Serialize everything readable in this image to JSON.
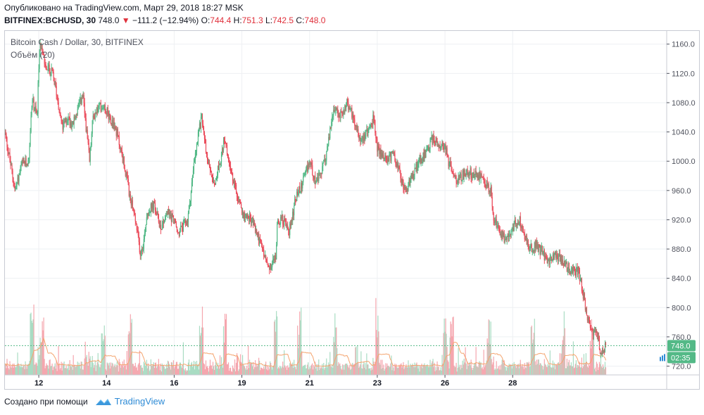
{
  "header": {
    "published_line": "Опубликовано на TradingView.com, Март 29, 2018 18:27 MSK",
    "symbol": "BITFINEX:BCHUSD, 30",
    "last": "748.0",
    "change": "−111.2 (−12.94%)",
    "o_label": "O:",
    "o_value": "744.4",
    "h_label": "H:",
    "h_value": "751.3",
    "l_label": "L:",
    "l_value": "742.5",
    "c_label": "C:",
    "c_value": "748.0"
  },
  "chart": {
    "series_title": "Bitcoin Cash / Dollar, 30, BITFINEX",
    "volume_title": "Объём (20)",
    "price_badge": "748.0",
    "countdown_badge": "02:35"
  },
  "footer": {
    "created_with": "Создано при помощи",
    "brand": "TradingView"
  },
  "colors": {
    "up": "#53b987",
    "down": "#eb4d5c",
    "volume_up": "#a9dcc3",
    "volume_down": "#f5a6ae",
    "volume_ma": "#f4a46e",
    "grid": "#eef0f3",
    "badge": "#53b987"
  },
  "chart_data": {
    "type": "candlestick",
    "x_tick_labels": [
      "12",
      "14",
      "16",
      "19",
      "21",
      "23",
      "26",
      "28"
    ],
    "x_tick_day_index": [
      1.0,
      3.0,
      5.0,
      7.0,
      9.0,
      11.0,
      13.0,
      15.0
    ],
    "y_ticks": [
      720,
      760,
      800,
      840,
      880,
      920,
      960,
      1000,
      1040,
      1080,
      1120,
      1160
    ],
    "y_tick_labels": [
      "720.0",
      "760.0",
      "800.0",
      "840.0",
      "880.0",
      "920.0",
      "960.0",
      "1000.0",
      "1040.0",
      "1080.0",
      "1120.0",
      "1160.0"
    ],
    "ylim": [
      708,
      1178
    ],
    "xlim_days": [
      0.0,
      19.55
    ],
    "last_price": 748.0,
    "close_anchors": [
      [
        0.0,
        1040
      ],
      [
        0.15,
        1000
      ],
      [
        0.3,
        960
      ],
      [
        0.5,
        995
      ],
      [
        0.7,
        1000
      ],
      [
        0.8,
        1085
      ],
      [
        0.95,
        1060
      ],
      [
        1.0,
        1130
      ],
      [
        1.05,
        1160
      ],
      [
        1.2,
        1130
      ],
      [
        1.4,
        1120
      ],
      [
        1.5,
        1100
      ],
      [
        1.7,
        1045
      ],
      [
        1.85,
        1060
      ],
      [
        2.0,
        1050
      ],
      [
        2.3,
        1090
      ],
      [
        2.5,
        1000
      ],
      [
        2.6,
        1060
      ],
      [
        2.8,
        1075
      ],
      [
        3.0,
        1070
      ],
      [
        3.3,
        1040
      ],
      [
        3.5,
        1000
      ],
      [
        3.7,
        950
      ],
      [
        3.85,
        920
      ],
      [
        4.0,
        875
      ],
      [
        4.1,
        890
      ],
      [
        4.2,
        930
      ],
      [
        4.4,
        940
      ],
      [
        4.6,
        910
      ],
      [
        4.8,
        930
      ],
      [
        5.0,
        920
      ],
      [
        5.1,
        900
      ],
      [
        5.4,
        920
      ],
      [
        5.6,
        1000
      ],
      [
        5.8,
        1060
      ],
      [
        6.0,
        1000
      ],
      [
        6.2,
        970
      ],
      [
        6.5,
        1030
      ],
      [
        6.7,
        980
      ],
      [
        7.0,
        930
      ],
      [
        7.3,
        920
      ],
      [
        7.6,
        880
      ],
      [
        7.8,
        850
      ],
      [
        8.0,
        870
      ],
      [
        8.05,
        920
      ],
      [
        8.2,
        920
      ],
      [
        8.4,
        905
      ],
      [
        8.6,
        950
      ],
      [
        8.8,
        970
      ],
      [
        9.0,
        1000
      ],
      [
        9.2,
        970
      ],
      [
        9.35,
        985
      ],
      [
        9.5,
        1010
      ],
      [
        9.7,
        1070
      ],
      [
        9.9,
        1060
      ],
      [
        10.1,
        1080
      ],
      [
        10.3,
        1060
      ],
      [
        10.5,
        1030
      ],
      [
        10.7,
        1040
      ],
      [
        10.9,
        1060
      ],
      [
        11.0,
        1020
      ],
      [
        11.2,
        1000
      ],
      [
        11.5,
        1010
      ],
      [
        11.7,
        975
      ],
      [
        11.85,
        960
      ],
      [
        12.0,
        975
      ],
      [
        12.2,
        1000
      ],
      [
        12.45,
        1010
      ],
      [
        12.6,
        1030
      ],
      [
        12.8,
        1025
      ],
      [
        13.0,
        1020
      ],
      [
        13.1,
        1000
      ],
      [
        13.3,
        975
      ],
      [
        13.5,
        980
      ],
      [
        13.7,
        985
      ],
      [
        13.9,
        980
      ],
      [
        14.0,
        980
      ],
      [
        14.2,
        970
      ],
      [
        14.35,
        960
      ],
      [
        14.45,
        920
      ],
      [
        14.6,
        905
      ],
      [
        14.8,
        890
      ],
      [
        15.0,
        910
      ],
      [
        15.2,
        920
      ],
      [
        15.35,
        900
      ],
      [
        15.5,
        880
      ],
      [
        15.7,
        885
      ],
      [
        15.9,
        875
      ],
      [
        16.05,
        860
      ],
      [
        16.2,
        870
      ],
      [
        16.5,
        865
      ],
      [
        16.6,
        855
      ],
      [
        16.8,
        850
      ],
      [
        16.95,
        850
      ],
      [
        17.2,
        790
      ],
      [
        17.35,
        770
      ],
      [
        17.5,
        760
      ],
      [
        17.6,
        740
      ],
      [
        17.75,
        748
      ]
    ],
    "volume": {
      "ma_length": 20,
      "spike_days": [
        0.8,
        1.1,
        2.9,
        3.7,
        5.8,
        6.5,
        8.0,
        8.7,
        9.75,
        11.0,
        13.0,
        13.2,
        14.3,
        15.6,
        16.5,
        17.35
      ]
    }
  }
}
